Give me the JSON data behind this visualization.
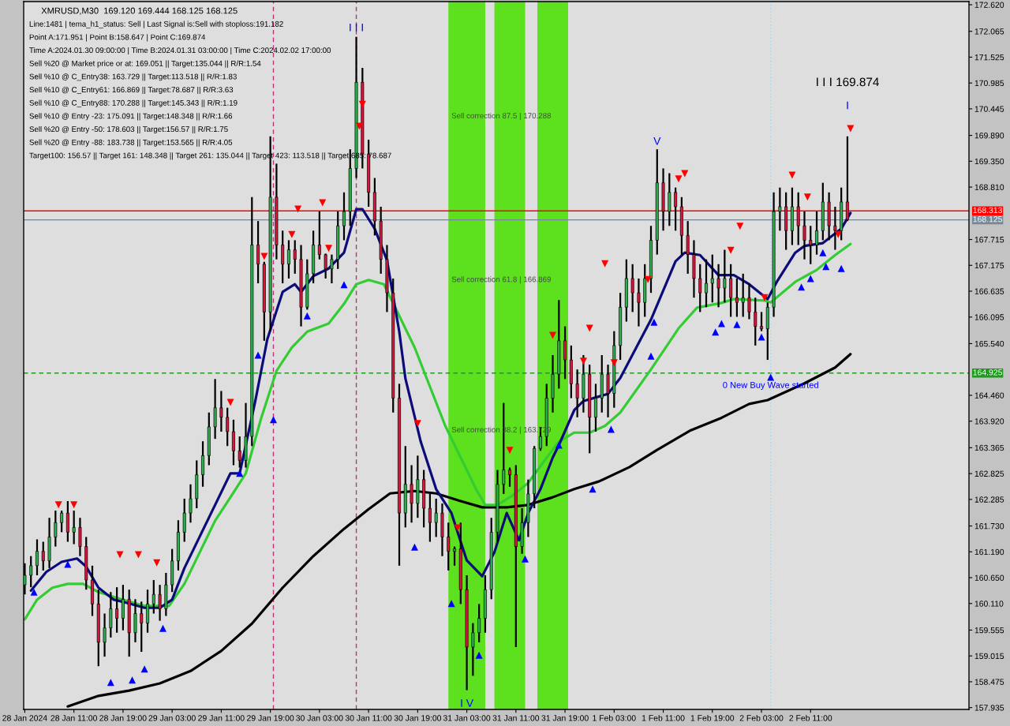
{
  "chart_data": {
    "type": "candlestick",
    "title": "XMRUSD,M30  169.120 169.444 168.125 168.125",
    "annotations": [
      "Line:1481 | tema_h1_status: Sell | Last Signal is:Sell with stoploss:191.182",
      "Point A:171.951 | Point B:158.647 | Point C:169.874",
      "Time A:2024.01.30 09:00:00 | Time B:2024.01.31 03:00:00 | Time C:2024.02.02 17:00:00",
      "Sell %20 @ Market price or at: 169.051 || Target:135.044 || R/R:1.54",
      "Sell %10 @ C_Entry38: 163.729 || Target:113.518 || R/R:1.83",
      "Sell %10 @ C_Entry61: 166.869 || Target:78.687 || R/R:3.63",
      "Sell %10 @ C_Entry88: 170.288 || Target:145.343 || R/R:1.19",
      "Sell %10 @ Entry -23: 175.091 || Target:148.348 || R/R:1.66",
      "Sell %20 @ Entry -50: 178.603 || Target:156.57 || R/R:1.75",
      "Sell %20 @ Entry -88: 183.738 || Target:153.565 || R/R:4.05",
      "Target100: 156.57 || Target 161: 148.348 || Target 261: 135.044 || Target 423: 113.518 || Target 685: 78.687",
      "I I I 169.874",
      "I",
      {
        "text": "Sell correction 87.5 | 170.288",
        "x": "2024-01-31T00:30",
        "y": 170.288
      },
      {
        "text": "Sell correction 61.8 | 166.869",
        "x": "2024-01-31T00:30",
        "y": 166.869
      },
      {
        "text": "Sell correction 38.2 | 163.729",
        "x": "2024-01-31T00:30",
        "y": 163.729
      },
      {
        "text": "0 New Buy Wave started",
        "x": "2024-02-02T04:30",
        "y": 164.66
      },
      {
        "text": "I I I",
        "x": "2024-01-30T09:00",
        "y": 171.95
      },
      {
        "text": "V",
        "x": "2024-02-01T10:00",
        "y": 169.6
      },
      {
        "text": "I V",
        "x": "2024-01-31T03:00",
        "y": 158.3
      }
    ],
    "x": [
      "2024-01-28T03:00",
      "2024-01-28T04:00",
      "2024-01-28T05:00",
      "2024-01-28T06:00",
      "2024-01-28T07:00",
      "2024-01-28T08:00",
      "2024-01-28T09:00",
      "2024-01-28T10:00",
      "2024-01-28T11:00",
      "2024-01-28T12:00",
      "2024-01-28T13:00",
      "2024-01-28T14:00",
      "2024-01-28T15:00",
      "2024-01-28T16:00",
      "2024-01-28T17:00",
      "2024-01-28T18:00",
      "2024-01-28T19:00",
      "2024-01-28T20:00",
      "2024-01-28T21:00",
      "2024-01-28T22:00",
      "2024-01-28T23:00",
      "2024-01-29T00:00",
      "2024-01-29T01:00",
      "2024-01-29T02:00",
      "2024-01-29T03:00",
      "2024-01-29T04:00",
      "2024-01-29T05:00",
      "2024-01-29T06:00",
      "2024-01-29T07:00",
      "2024-01-29T08:00",
      "2024-01-29T09:00",
      "2024-01-29T10:00",
      "2024-01-29T11:00",
      "2024-01-29T12:00",
      "2024-01-29T13:00",
      "2024-01-29T14:00",
      "2024-01-29T15:00",
      "2024-01-29T16:00",
      "2024-01-29T17:00",
      "2024-01-29T18:00",
      "2024-01-29T19:00",
      "2024-01-29T20:00",
      "2024-01-29T21:00",
      "2024-01-29T22:00",
      "2024-01-29T23:00",
      "2024-01-30T00:00",
      "2024-01-30T01:00",
      "2024-01-30T02:00",
      "2024-01-30T03:00",
      "2024-01-30T04:00",
      "2024-01-30T05:00",
      "2024-01-30T06:00",
      "2024-01-30T07:00",
      "2024-01-30T08:00",
      "2024-01-30T09:00",
      "2024-01-30T10:00",
      "2024-01-30T11:00",
      "2024-01-30T12:00",
      "2024-01-30T13:00",
      "2024-01-30T14:00",
      "2024-01-30T15:00",
      "2024-01-30T16:00",
      "2024-01-30T17:00",
      "2024-01-30T18:00",
      "2024-01-30T19:00",
      "2024-01-30T20:00",
      "2024-01-30T21:00",
      "2024-01-30T22:00",
      "2024-01-30T23:00",
      "2024-01-31T00:00",
      "2024-01-31T01:00",
      "2024-01-31T02:00",
      "2024-01-31T03:00",
      "2024-01-31T04:00",
      "2024-01-31T05:00",
      "2024-01-31T06:00",
      "2024-01-31T07:00",
      "2024-01-31T08:00",
      "2024-01-31T09:00",
      "2024-01-31T10:00",
      "2024-01-31T11:00",
      "2024-01-31T12:00",
      "2024-01-31T13:00",
      "2024-01-31T14:00",
      "2024-01-31T15:00",
      "2024-01-31T16:00",
      "2024-01-31T17:00",
      "2024-01-31T18:00",
      "2024-01-31T19:00",
      "2024-01-31T20:00",
      "2024-01-31T21:00",
      "2024-01-31T22:00",
      "2024-01-31T23:00",
      "2024-02-01T00:00",
      "2024-02-01T01:00",
      "2024-02-01T02:00",
      "2024-02-01T03:00",
      "2024-02-01T04:00",
      "2024-02-01T05:00",
      "2024-02-01T06:00",
      "2024-02-01T07:00",
      "2024-02-01T08:00",
      "2024-02-01T09:00",
      "2024-02-01T10:00",
      "2024-02-01T11:00",
      "2024-02-01T12:00",
      "2024-02-01T13:00",
      "2024-02-01T14:00",
      "2024-02-01T15:00",
      "2024-02-01T16:00",
      "2024-02-01T17:00",
      "2024-02-01T18:00",
      "2024-02-01T19:00",
      "2024-02-01T20:00",
      "2024-02-01T21:00",
      "2024-02-01T22:00",
      "2024-02-01T23:00",
      "2024-02-02T00:00",
      "2024-02-02T01:00",
      "2024-02-02T02:00",
      "2024-02-02T03:00",
      "2024-02-02T04:00",
      "2024-02-02T05:00",
      "2024-02-02T06:00",
      "2024-02-02T07:00",
      "2024-02-02T08:00",
      "2024-02-02T09:00",
      "2024-02-02T10:00",
      "2024-02-02T11:00",
      "2024-02-02T12:00",
      "2024-02-02T13:00",
      "2024-02-02T14:00",
      "2024-02-02T15:00",
      "2024-02-02T16:00",
      "2024-02-02T17:00"
    ],
    "ohlc": [
      [
        160.5,
        160.95,
        160.3,
        160.7
      ],
      [
        160.7,
        161.1,
        160.45,
        160.9
      ],
      [
        160.9,
        161.45,
        160.7,
        161.2
      ],
      [
        161.2,
        161.4,
        160.8,
        161.0
      ],
      [
        161.0,
        161.9,
        160.85,
        161.5
      ],
      [
        161.5,
        162.05,
        161.3,
        161.8
      ],
      [
        161.8,
        162.05,
        161.6,
        162.0
      ],
      [
        162.0,
        162.25,
        161.4,
        161.6
      ],
      [
        161.6,
        162.05,
        161.35,
        161.7
      ],
      [
        161.7,
        161.9,
        161.1,
        161.3
      ],
      [
        161.3,
        161.5,
        160.4,
        160.6
      ],
      [
        160.6,
        160.9,
        159.85,
        160.1
      ],
      [
        160.1,
        160.4,
        158.8,
        159.3
      ],
      [
        159.3,
        159.9,
        159.0,
        159.6
      ],
      [
        159.6,
        160.35,
        159.4,
        160.0
      ],
      [
        160.0,
        160.45,
        159.5,
        159.8
      ],
      [
        159.8,
        160.5,
        159.55,
        160.2
      ],
      [
        160.2,
        160.4,
        159.0,
        159.5
      ],
      [
        159.5,
        160.2,
        159.3,
        159.9
      ],
      [
        159.9,
        160.15,
        159.1,
        159.7
      ],
      [
        159.7,
        160.4,
        159.5,
        160.1
      ],
      [
        160.1,
        160.6,
        159.9,
        160.3
      ],
      [
        160.3,
        160.5,
        159.75,
        160.0
      ],
      [
        160.0,
        160.75,
        159.85,
        160.5
      ],
      [
        160.5,
        161.25,
        160.35,
        161.0
      ],
      [
        161.0,
        161.85,
        160.8,
        161.6
      ],
      [
        161.6,
        162.3,
        161.4,
        162.0
      ],
      [
        162.0,
        162.6,
        161.8,
        162.3
      ],
      [
        162.3,
        163.1,
        162.1,
        162.8
      ],
      [
        162.8,
        163.5,
        162.55,
        163.2
      ],
      [
        163.2,
        164.1,
        163.0,
        163.8
      ],
      [
        163.8,
        164.8,
        163.55,
        164.2
      ],
      [
        164.2,
        164.55,
        163.7,
        164.0
      ],
      [
        164.0,
        164.2,
        163.4,
        163.7
      ],
      [
        163.7,
        163.95,
        163.0,
        163.3
      ],
      [
        163.3,
        163.6,
        162.95,
        163.1
      ],
      [
        163.1,
        164.3,
        162.95,
        163.6
      ],
      [
        163.6,
        168.6,
        163.4,
        167.6
      ],
      [
        167.6,
        168.1,
        166.8,
        167.2
      ],
      [
        167.2,
        167.25,
        165.6,
        166.2
      ],
      [
        166.2,
        169.87,
        165.8,
        168.6
      ],
      [
        168.6,
        169.3,
        167.3,
        167.6
      ],
      [
        167.6,
        167.9,
        166.8,
        167.2
      ],
      [
        167.2,
        167.7,
        166.9,
        167.5
      ],
      [
        167.5,
        167.7,
        167.0,
        167.3
      ],
      [
        167.3,
        167.6,
        165.9,
        166.3
      ],
      [
        166.3,
        167.3,
        166.25,
        167.0
      ],
      [
        167.0,
        167.9,
        166.8,
        167.6
      ],
      [
        167.6,
        168.3,
        167.3,
        167.4
      ],
      [
        167.4,
        167.42,
        166.9,
        167.1
      ],
      [
        167.1,
        167.4,
        166.8,
        167.3
      ],
      [
        167.3,
        168.3,
        167.1,
        168.0
      ],
      [
        168.0,
        168.7,
        167.7,
        168.3
      ],
      [
        168.3,
        169.6,
        168.0,
        169.2
      ],
      [
        169.2,
        171.95,
        169.0,
        171.0
      ],
      [
        171.0,
        171.3,
        169.2,
        169.5
      ],
      [
        169.5,
        169.8,
        168.4,
        168.7
      ],
      [
        168.7,
        169.0,
        167.8,
        168.1
      ],
      [
        168.1,
        168.4,
        167.0,
        167.3
      ],
      [
        167.3,
        167.6,
        166.2,
        166.6
      ],
      [
        166.6,
        166.9,
        164.1,
        164.4
      ],
      [
        164.4,
        164.7,
        160.9,
        162.0
      ],
      [
        162.0,
        163.4,
        161.7,
        162.6
      ],
      [
        162.6,
        163.0,
        161.8,
        162.2
      ],
      [
        162.2,
        163.2,
        161.9,
        162.7
      ],
      [
        162.7,
        162.9,
        161.7,
        162.1
      ],
      [
        162.1,
        162.4,
        161.4,
        161.8
      ],
      [
        161.8,
        162.3,
        161.5,
        162.0
      ],
      [
        162.0,
        162.2,
        161.1,
        161.5
      ],
      [
        161.5,
        161.8,
        160.8,
        161.2
      ],
      [
        161.2,
        161.3,
        160.9,
        161.25
      ],
      [
        161.25,
        161.8,
        160.1,
        160.4
      ],
      [
        160.4,
        160.7,
        158.3,
        159.2
      ],
      [
        159.2,
        159.7,
        158.6,
        159.5
      ],
      [
        159.5,
        160.1,
        159.3,
        159.8
      ],
      [
        159.8,
        160.7,
        159.5,
        160.4
      ],
      [
        160.4,
        161.9,
        160.2,
        161.6
      ],
      [
        161.6,
        162.9,
        161.4,
        162.6
      ],
      [
        162.6,
        164.3,
        162.4,
        162.9
      ],
      [
        162.9,
        162.95,
        162.55,
        162.8
      ],
      [
        162.8,
        163.0,
        159.2,
        161.3
      ],
      [
        161.3,
        162.1,
        161.15,
        161.8
      ],
      [
        161.8,
        162.7,
        161.5,
        162.4
      ],
      [
        162.4,
        163.4,
        162.1,
        163.35
      ],
      [
        163.35,
        163.8,
        163.3,
        163.6
      ],
      [
        163.6,
        164.7,
        163.4,
        164.4
      ],
      [
        164.4,
        165.3,
        164.1,
        164.9
      ],
      [
        164.9,
        166.45,
        164.6,
        165.6
      ],
      [
        165.6,
        165.9,
        164.8,
        165.2
      ],
      [
        165.2,
        165.5,
        164.4,
        164.7
      ],
      [
        164.7,
        165.0,
        164.0,
        164.4
      ],
      [
        164.4,
        165.3,
        164.1,
        164.9
      ],
      [
        164.9,
        165.1,
        163.25,
        164.0
      ],
      [
        164.0,
        164.7,
        163.7,
        164.4
      ],
      [
        164.4,
        165.3,
        164.1,
        164.9
      ],
      [
        164.9,
        165.1,
        164.0,
        164.5
      ],
      [
        164.5,
        165.8,
        164.2,
        165.5
      ],
      [
        165.5,
        166.6,
        165.2,
        166.3
      ],
      [
        166.3,
        167.3,
        166.0,
        166.9
      ],
      [
        166.9,
        167.2,
        166.2,
        166.6
      ],
      [
        166.6,
        166.9,
        165.9,
        166.4
      ],
      [
        166.4,
        167.2,
        166.1,
        166.9
      ],
      [
        166.9,
        168.0,
        166.6,
        167.7
      ],
      [
        167.7,
        169.6,
        167.4,
        168.9
      ],
      [
        168.9,
        169.2,
        167.9,
        168.3
      ],
      [
        168.3,
        169.1,
        168.0,
        168.7
      ],
      [
        168.7,
        168.8,
        167.9,
        168.4
      ],
      [
        168.4,
        168.6,
        167.4,
        167.8
      ],
      [
        167.8,
        168.1,
        167.0,
        167.4
      ],
      [
        167.4,
        167.7,
        166.5,
        166.9
      ],
      [
        166.9,
        167.2,
        166.2,
        166.6
      ],
      [
        166.6,
        167.3,
        166.3,
        166.8
      ],
      [
        166.8,
        167.4,
        166.4,
        166.9
      ],
      [
        166.9,
        167.2,
        166.3,
        166.7
      ],
      [
        166.7,
        167.5,
        166.4,
        166.9
      ],
      [
        166.9,
        167.2,
        166.1,
        166.5
      ],
      [
        166.5,
        166.9,
        166.1,
        166.4
      ],
      [
        166.4,
        167.0,
        166.1,
        166.5
      ],
      [
        166.5,
        166.8,
        166.05,
        166.2
      ],
      [
        166.2,
        166.5,
        165.5,
        165.9
      ],
      [
        165.9,
        166.2,
        165.8,
        165.85
      ],
      [
        165.85,
        166.4,
        165.2,
        166.3
      ],
      [
        166.3,
        168.7,
        166.1,
        168.3
      ],
      [
        168.3,
        168.8,
        167.9,
        168.4
      ],
      [
        168.4,
        168.7,
        167.5,
        167.9
      ],
      [
        167.9,
        168.8,
        167.6,
        168.4
      ],
      [
        168.4,
        168.7,
        167.6,
        168.0
      ],
      [
        168.0,
        168.3,
        167.3,
        167.7
      ],
      [
        167.7,
        168.0,
        167.2,
        167.6
      ],
      [
        167.6,
        168.3,
        167.4,
        167.9
      ],
      [
        167.9,
        168.9,
        167.7,
        168.5
      ],
      [
        168.5,
        168.7,
        167.7,
        168.0
      ],
      [
        168.0,
        168.4,
        167.5,
        167.9
      ],
      [
        167.9,
        168.8,
        167.7,
        168.5
      ],
      [
        168.5,
        169.87,
        168.1,
        168.13
      ]
    ],
    "colors": [
      "#2bb24c",
      "#2bb24c",
      "#2bb24c",
      "#d9163b",
      "#2bb24c",
      "#2bb24c",
      "#2bb24c",
      "#d9163b",
      "#2bb24c",
      "#d9163b",
      "#d9163b",
      "#d9163b",
      "#d9163b",
      "#2bb24c",
      "#2bb24c",
      "#d9163b",
      "#2bb24c",
      "#d9163b",
      "#2bb24c",
      "#d9163b",
      "#2bb24c",
      "#2bb24c",
      "#d9163b",
      "#2bb24c",
      "#2bb24c",
      "#2bb24c",
      "#2bb24c",
      "#2bb24c",
      "#2bb24c",
      "#2bb24c",
      "#2bb24c",
      "#2bb24c",
      "#d9163b",
      "#d9163b",
      "#d9163b",
      "#d9163b",
      "#2bb24c",
      "#2bb24c",
      "#d9163b",
      "#d9163b",
      "#2bb24c",
      "#d9163b",
      "#d9163b",
      "#2bb24c",
      "#d9163b",
      "#d9163b",
      "#2bb24c",
      "#2bb24c",
      "#d9163b",
      "#d9163b",
      "#2bb24c",
      "#2bb24c",
      "#2bb24c",
      "#2bb24c",
      "#2bb24c",
      "#d9163b",
      "#d9163b",
      "#d9163b",
      "#d9163b",
      "#d9163b",
      "#d9163b",
      "#d9163b",
      "#2bb24c",
      "#d9163b",
      "#2bb24c",
      "#d9163b",
      "#d9163b",
      "#2bb24c",
      "#d9163b",
      "#d9163b",
      "#2bb24c",
      "#d9163b",
      "#d9163b",
      "#2bb24c",
      "#2bb24c",
      "#2bb24c",
      "#2bb24c",
      "#2bb24c",
      "#2bb24c",
      "#d9163b",
      "#d9163b",
      "#2bb24c",
      "#2bb24c",
      "#2bb24c",
      "#2bb24c",
      "#2bb24c",
      "#2bb24c",
      "#2bb24c",
      "#d9163b",
      "#d9163b",
      "#d9163b",
      "#2bb24c",
      "#d9163b",
      "#2bb24c",
      "#2bb24c",
      "#d9163b",
      "#2bb24c",
      "#2bb24c",
      "#2bb24c",
      "#d9163b",
      "#d9163b",
      "#2bb24c",
      "#2bb24c",
      "#2bb24c",
      "#d9163b",
      "#2bb24c",
      "#d9163b",
      "#d9163b",
      "#d9163b",
      "#d9163b",
      "#d9163b",
      "#2bb24c",
      "#2bb24c",
      "#d9163b",
      "#2bb24c",
      "#d9163b",
      "#d9163b",
      "#2bb24c",
      "#d9163b",
      "#d9163b",
      "#d9163b",
      "#2bb24c",
      "#2bb24c",
      "#2bb24c",
      "#d9163b",
      "#2bb24c",
      "#d9163b",
      "#d9163b",
      "#d9163b",
      "#2bb24c",
      "#2bb24c",
      "#d9163b",
      "#d9163b",
      "#2bb24c",
      "#d9163b"
    ],
    "series": [
      {
        "type": "line",
        "color": "#000000",
        "x": [
          "2024-01-28T10:00",
          "2024-01-28T15:00",
          "2024-01-28T20:00",
          "2024-01-29T01:00",
          "2024-01-29T06:00",
          "2024-01-29T11:00",
          "2024-01-29T16:00",
          "2024-01-29T21:00",
          "2024-01-30T02:00",
          "2024-01-30T07:00",
          "2024-01-30T11:00",
          "2024-01-30T14:30",
          "2024-01-30T18:30",
          "2024-01-30T22:00",
          "2024-01-31T02:00",
          "2024-01-31T05:30",
          "2024-01-31T09:30",
          "2024-01-31T13:00",
          "2024-01-31T17:00",
          "2024-01-31T20:30",
          "2024-02-01T00:30",
          "2024-02-01T05:30",
          "2024-02-01T10:00",
          "2024-02-01T15:30",
          "2024-02-01T20:30",
          "2024-02-02T01:00",
          "2024-02-02T04:00",
          "2024-02-02T10:00",
          "2024-02-02T15:00",
          "2024-02-02T17:30"
        ],
        "values": [
          157.96,
          158.18,
          158.29,
          158.44,
          158.7,
          159.12,
          159.69,
          160.44,
          161.1,
          161.67,
          162.08,
          162.41,
          162.46,
          162.41,
          162.25,
          162.12,
          162.12,
          162.17,
          162.33,
          162.5,
          162.66,
          162.96,
          163.32,
          163.73,
          163.99,
          164.28,
          164.36,
          164.71,
          165.04,
          165.32
        ]
      },
      {
        "type": "line",
        "color": "#33cc33",
        "x": [
          "2024-01-28T03:00",
          "2024-01-28T05:00",
          "2024-01-28T07:30",
          "2024-01-28T10:00",
          "2024-01-28T12:30",
          "2024-01-28T15:00",
          "2024-01-28T19:00",
          "2024-01-28T22:30",
          "2024-01-29T02:30",
          "2024-01-29T05:00",
          "2024-01-29T07:30",
          "2024-01-29T10:00",
          "2024-01-29T12:30",
          "2024-01-29T15:00",
          "2024-01-29T17:30",
          "2024-01-29T20:00",
          "2024-01-29T22:30",
          "2024-01-30T01:00",
          "2024-01-30T04:30",
          "2024-01-30T07:00",
          "2024-01-30T09:00",
          "2024-01-30T11:00",
          "2024-01-30T13:30",
          "2024-01-30T16:00",
          "2024-01-30T18:30",
          "2024-01-30T21:00",
          "2024-01-30T23:30",
          "2024-01-31T02:00",
          "2024-01-31T04:30",
          "2024-01-31T06:00",
          "2024-01-31T08:00",
          "2024-01-31T10:30",
          "2024-01-31T13:00",
          "2024-01-31T15:30",
          "2024-01-31T18:00",
          "2024-01-31T20:30",
          "2024-01-31T23:00",
          "2024-02-01T01:30",
          "2024-02-01T04:00",
          "2024-02-01T09:00",
          "2024-02-01T13:30",
          "2024-02-01T16:30",
          "2024-02-01T20:30",
          "2024-02-01T22:30",
          "2024-02-02T03:30",
          "2024-02-02T04:30",
          "2024-02-02T08:30",
          "2024-02-02T12:00",
          "2024-02-02T15:00",
          "2024-02-02T17:30"
        ],
        "values": [
          159.78,
          160.19,
          160.44,
          160.52,
          160.52,
          160.35,
          160.19,
          160.06,
          160.06,
          160.52,
          161.18,
          161.84,
          162.33,
          162.83,
          163.98,
          164.97,
          165.46,
          165.79,
          165.96,
          166.37,
          166.78,
          166.87,
          166.78,
          166.12,
          165.46,
          164.64,
          163.82,
          163.16,
          162.5,
          162.17,
          162.17,
          162.37,
          162.63,
          163.07,
          163.49,
          163.68,
          163.68,
          163.82,
          164.1,
          165.0,
          165.86,
          166.29,
          166.39,
          166.47,
          166.44,
          166.4,
          166.83,
          167.08,
          167.39,
          167.62
        ]
      },
      {
        "type": "line",
        "color": "#0b0b7a",
        "x": [
          "2024-01-28T04:00",
          "2024-01-28T06:30",
          "2024-01-28T09:00",
          "2024-01-28T11:30",
          "2024-01-28T13:00",
          "2024-01-28T15:00",
          "2024-01-28T17:30",
          "2024-01-28T20:00",
          "2024-01-28T22:30",
          "2024-01-29T01:00",
          "2024-01-29T03:00",
          "2024-01-29T05:00",
          "2024-01-29T07:30",
          "2024-01-29T10:00",
          "2024-01-29T12:30",
          "2024-01-29T14:00",
          "2024-01-29T16:30",
          "2024-01-29T18:30",
          "2024-01-29T21:00",
          "2024-01-29T23:00",
          "2024-01-30T00:00",
          "2024-01-30T02:00",
          "2024-01-30T04:30",
          "2024-01-30T07:00",
          "2024-01-30T09:00",
          "2024-01-30T10:00",
          "2024-01-30T12:00",
          "2024-01-30T14:00",
          "2024-01-30T16:00",
          "2024-01-30T17:00",
          "2024-01-30T19:30",
          "2024-01-30T22:00",
          "2024-01-31T00:30",
          "2024-01-31T03:00",
          "2024-01-31T05:30",
          "2024-01-31T07:30",
          "2024-01-31T09:30",
          "2024-01-31T11:30",
          "2024-01-31T13:00",
          "2024-01-31T15:00",
          "2024-01-31T17:00",
          "2024-01-31T18:00",
          "2024-01-31T20:30",
          "2024-01-31T22:00",
          "2024-02-01T02:00",
          "2024-02-01T04:00",
          "2024-02-01T06:30",
          "2024-02-01T09:00",
          "2024-02-01T11:00",
          "2024-02-01T13:00",
          "2024-02-01T14:30",
          "2024-02-01T17:00",
          "2024-02-01T20:00",
          "2024-02-01T22:30",
          "2024-02-02T01:00",
          "2024-02-02T04:00",
          "2024-02-02T05:30",
          "2024-02-02T08:30",
          "2024-02-02T10:00",
          "2024-02-02T13:00",
          "2024-02-02T16:00",
          "2024-02-02T17:30"
        ],
        "values": [
          160.38,
          160.77,
          160.98,
          161.05,
          160.88,
          160.44,
          160.19,
          160.11,
          160.02,
          160.02,
          160.19,
          160.85,
          161.51,
          162.17,
          162.83,
          162.83,
          164.31,
          165.63,
          166.62,
          166.78,
          166.62,
          166.95,
          167.11,
          167.44,
          168.35,
          168.35,
          167.94,
          167.28,
          165.79,
          164.81,
          163.49,
          162.5,
          162.0,
          161.01,
          160.68,
          161.18,
          162.0,
          161.43,
          162.0,
          162.5,
          163.16,
          163.42,
          164.15,
          164.34,
          164.49,
          164.82,
          165.43,
          166.04,
          166.65,
          167.26,
          167.44,
          167.39,
          166.97,
          166.97,
          166.78,
          166.47,
          166.83,
          167.44,
          167.58,
          167.64,
          167.94,
          168.27
        ]
      },
      {
        "type": "scatter",
        "color": "#0000ff",
        "marker": "triangle",
        "x": [
          "2024-01-28T04:30",
          "2024-01-28T10:00",
          "2024-01-28T17:00",
          "2024-01-28T20:30",
          "2024-01-28T22:30",
          "2024-01-29T01:30",
          "2024-01-29T14:00",
          "2024-01-29T17:00",
          "2024-01-29T19:30",
          "2024-01-30T01:00",
          "2024-01-30T07:00",
          "2024-01-30T18:30",
          "2024-01-31T00:30",
          "2024-01-31T05:00",
          "2024-01-31T12:30",
          "2024-01-31T18:00",
          "2024-01-31T23:30",
          "2024-02-01T02:30",
          "2024-02-01T09:00",
          "2024-02-01T09:30",
          "2024-02-01T19:30",
          "2024-02-01T20:30",
          "2024-02-01T23:00",
          "2024-02-02T03:00",
          "2024-02-02T04:30",
          "2024-02-02T09:30",
          "2024-02-02T11:00",
          "2024-02-02T13:00",
          "2024-02-02T13:30",
          "2024-02-02T16:00"
        ],
        "values": [
          160.35,
          160.93,
          158.46,
          158.51,
          158.74,
          159.59,
          162.83,
          165.3,
          163.95,
          166.12,
          166.77,
          161.29,
          160.11,
          159.03,
          161.04,
          163.42,
          162.5,
          163.75,
          165.28,
          165.99,
          165.78,
          165.96,
          165.94,
          165.68,
          164.84,
          166.72,
          166.9,
          167.44,
          167.15,
          167.11
        ]
      },
      {
        "type": "scatter",
        "color": "#ff0000",
        "marker": "triangle_down",
        "x": [
          "2024-01-28T08:30",
          "2024-01-28T11:00",
          "2024-01-28T18:30",
          "2024-01-28T21:30",
          "2024-01-29T00:30",
          "2024-01-29T12:30",
          "2024-01-29T18:00",
          "2024-01-29T22:30",
          "2024-01-29T23:30",
          "2024-01-30T03:30",
          "2024-01-30T04:30",
          "2024-01-30T09:30",
          "2024-01-30T10:00",
          "2024-01-30T19:00",
          "2024-01-31T01:30",
          "2024-01-31T10:00",
          "2024-01-31T17:00",
          "2024-01-31T22:00",
          "2024-01-31T23:00",
          "2024-02-01T01:30",
          "2024-02-01T03:00",
          "2024-02-01T08:30",
          "2024-02-01T13:30",
          "2024-02-01T14:30",
          "2024-02-01T22:00",
          "2024-02-01T23:30",
          "2024-02-02T03:30",
          "2024-02-02T08:00",
          "2024-02-02T10:30",
          "2024-02-02T15:30",
          "2024-02-02T17:30"
        ],
        "values": [
          162.17,
          162.17,
          161.13,
          161.13,
          160.96,
          164.31,
          167.36,
          167.82,
          168.35,
          168.48,
          167.53,
          170.08,
          170.54,
          163.87,
          161.69,
          163.31,
          165.71,
          165.17,
          165.86,
          167.21,
          165.14,
          166.88,
          168.98,
          169.09,
          167.49,
          167.99,
          166.5,
          169.06,
          168.6,
          167.82,
          170.03
        ]
      }
    ],
    "xlim": [
      "2024-01-28T02:49",
      "2024-02-03T12:48"
    ],
    "ylim": [
      157.897,
      172.686
    ],
    "xticks": [
      {
        "value": "2024-01-28T03:00",
        "label": "28 Jan 2024"
      },
      {
        "value": "2024-01-28T11:00",
        "label": "28 Jan 11:00"
      },
      {
        "value": "2024-01-28T19:00",
        "label": "28 Jan 19:00"
      },
      {
        "value": "2024-01-29T03:00",
        "label": "29 Jan 03:00"
      },
      {
        "value": "2024-01-29T11:00",
        "label": "29 Jan 11:00"
      },
      {
        "value": "2024-01-29T19:00",
        "label": "29 Jan 19:00"
      },
      {
        "value": "2024-01-30T03:00",
        "label": "30 Jan 03:00"
      },
      {
        "value": "2024-01-30T11:00",
        "label": "30 Jan 11:00"
      },
      {
        "value": "2024-01-30T19:00",
        "label": "30 Jan 19:00"
      },
      {
        "value": "2024-01-31T03:00",
        "label": "31 Jan 03:00"
      },
      {
        "value": "2024-01-31T11:00",
        "label": "31 Jan 11:00"
      },
      {
        "value": "2024-01-31T19:00",
        "label": "31 Jan 19:00"
      },
      {
        "value": "2024-02-01T03:00",
        "label": "1 Feb 03:00"
      },
      {
        "value": "2024-02-01T11:00",
        "label": "1 Feb 11:00"
      },
      {
        "value": "2024-02-01T19:00",
        "label": "1 Feb 19:00"
      },
      {
        "value": "2024-02-02T03:00",
        "label": "2 Feb 03:00"
      },
      {
        "value": "2024-02-02T11:00",
        "label": "2 Feb 11:00"
      }
    ],
    "yticks": [
      {
        "value": 172.62,
        "label": "172.620"
      },
      172.065,
      171.525,
      170.985,
      170.445,
      {
        "value": 169.89,
        "label": "169.890"
      },
      {
        "value": 169.35,
        "label": "169.350"
      },
      {
        "value": 168.81,
        "label": "168.810"
      },
      167.715,
      167.175,
      166.635,
      166.095,
      {
        "value": 165.54,
        "label": "165.540"
      },
      {
        "value": 164.46,
        "label": "164.460"
      },
      {
        "value": 163.92,
        "label": "163.920"
      },
      163.365,
      162.825,
      162.285,
      {
        "value": 161.73,
        "label": "161.730"
      },
      {
        "value": 161.19,
        "label": "161.190"
      },
      {
        "value": 160.65,
        "label": "160.650"
      },
      {
        "value": 160.11,
        "label": "160.110"
      },
      159.555,
      159.015,
      158.475,
      157.935
    ],
    "ref_lines": [
      {
        "axis": "y",
        "value": 168.313,
        "label": "168.313",
        "color": "#ff0000",
        "line_style": "solid"
      },
      {
        "axis": "y",
        "value": 168.125,
        "label": "168.125",
        "color": "#778899",
        "line_style": "solid"
      },
      {
        "axis": "y",
        "value": 164.925,
        "label": "164.925",
        "color": "#1f9a1f",
        "line_style": "dashed"
      },
      {
        "axis": "x",
        "value": "2024-01-29T19:30",
        "color": "#c0307a",
        "line_style": "dashed"
      },
      {
        "axis": "x",
        "value": "2024-01-30T09:00",
        "color": "#c0307a",
        "line_style": "dashed"
      },
      {
        "axis": "x",
        "value": "2024-02-02T04:30",
        "color": "#a8d8e8",
        "line_style": "dotted"
      }
    ],
    "bands": [
      {
        "axis": "x",
        "from": "2024-01-31T00:00",
        "to": "2024-01-31T06:00",
        "color": "#5de01e"
      },
      {
        "axis": "x",
        "from": "2024-01-31T07:30",
        "to": "2024-01-31T12:30",
        "color": "#5de01e"
      },
      {
        "axis": "x",
        "from": "2024-01-31T14:30",
        "to": "2024-01-31T19:30",
        "color": "#5de01e"
      }
    ]
  }
}
